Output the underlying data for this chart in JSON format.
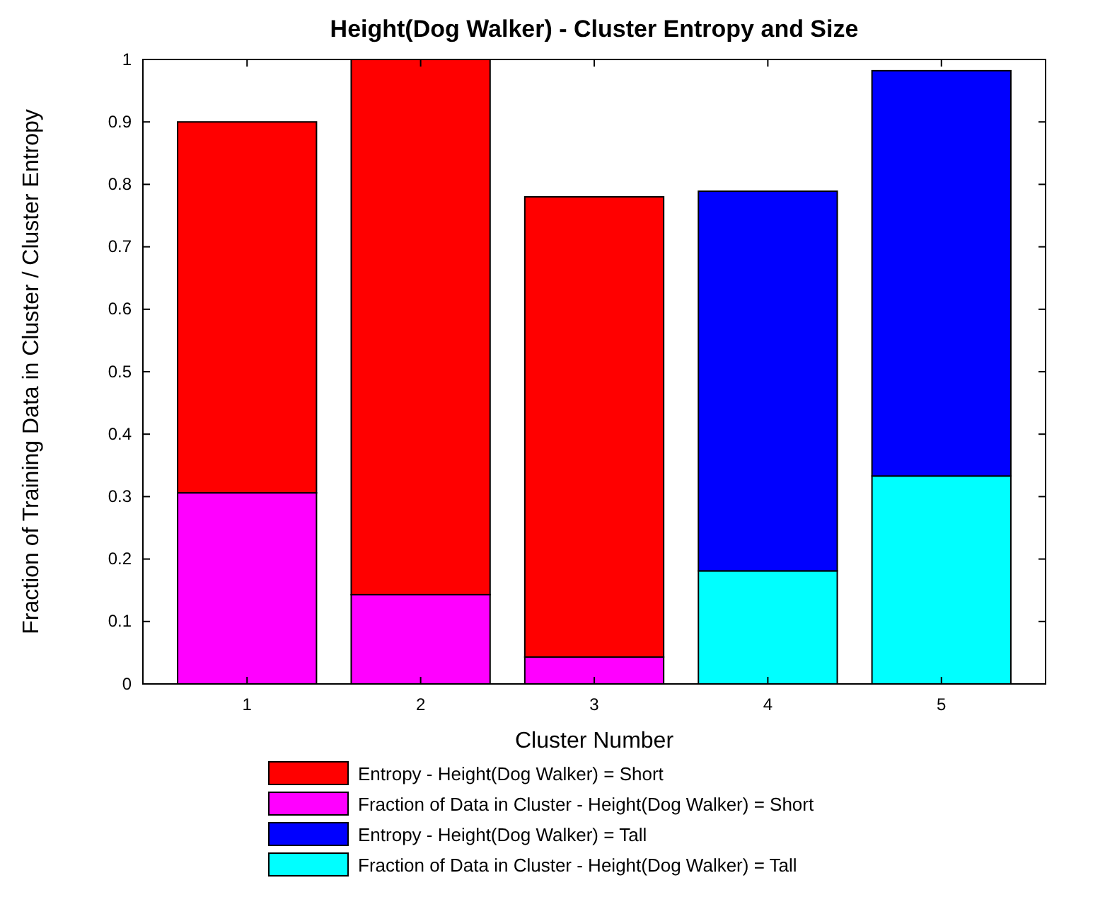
{
  "chart_data": {
    "type": "bar",
    "title": "Height(Dog Walker) - Cluster Entropy and Size",
    "xlabel": "Cluster Number",
    "ylabel": "Fraction of Training Data in Cluster / Cluster Entropy",
    "categories": [
      "1",
      "2",
      "3",
      "4",
      "5"
    ],
    "stacked": true,
    "ylim": [
      0,
      1
    ],
    "yticks": [
      0,
      0.1,
      0.2,
      0.3,
      0.4,
      0.5,
      0.6,
      0.7,
      0.8,
      0.9,
      1
    ],
    "grid": false,
    "legend": "bottom",
    "series": [
      {
        "name": "Fraction of Data in Cluster - Height(Dog Walker) = Short",
        "color": "#ff00ff",
        "values": [
          0.306,
          0.143,
          0.043,
          null,
          null
        ]
      },
      {
        "name": "Entropy - Height(Dog Walker) = Short",
        "color": "#ff0000",
        "values": [
          0.594,
          0.857,
          0.737,
          null,
          null
        ]
      },
      {
        "name": "Fraction of Data in Cluster - Height(Dog Walker) = Tall",
        "color": "#00ffff",
        "values": [
          null,
          null,
          null,
          0.181,
          0.333
        ]
      },
      {
        "name": "Entropy - Height(Dog Walker) = Tall",
        "color": "#0000ff",
        "values": [
          null,
          null,
          null,
          0.608,
          0.649
        ]
      }
    ]
  }
}
